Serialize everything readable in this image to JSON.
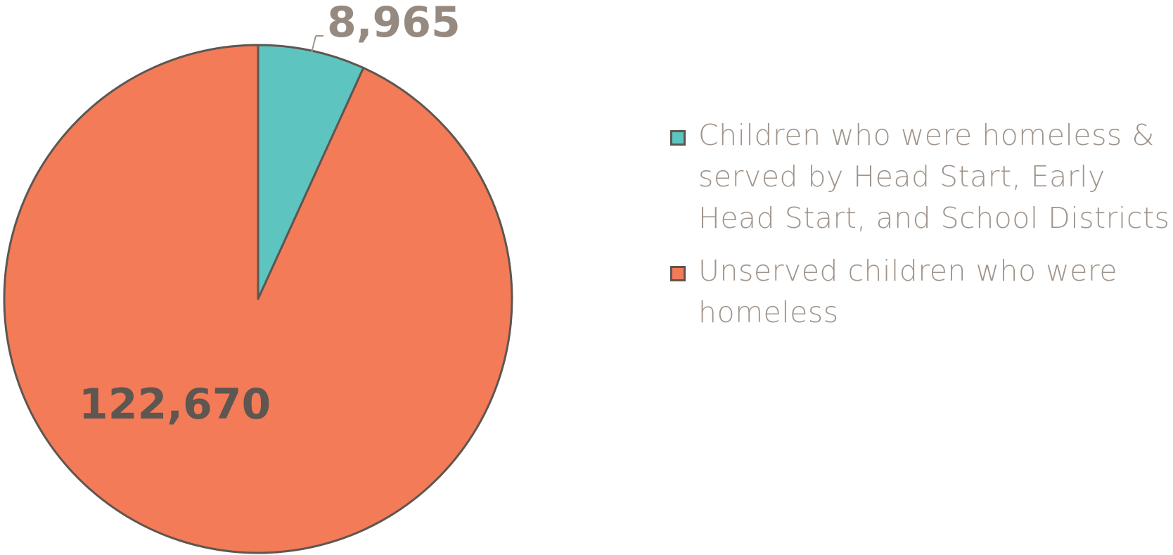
{
  "chart_data": {
    "type": "pie",
    "title": "",
    "slices": [
      {
        "label": "Children who were homeless & served by Head Start, Early Head Start, and School Districts",
        "value": 8965,
        "display_value": "8,965",
        "color": "#5ec4bf"
      },
      {
        "label": "Unserved children who were homeless",
        "value": 122670,
        "display_value": "122,670",
        "color": "#f47b58"
      }
    ],
    "start_angle": "12 o'clock",
    "direction": "clockwise",
    "legend_position": "right",
    "slice_outline_color": "#5e5650",
    "label_colors": {
      "small_slice": "#968a80",
      "large_slice": "#5e5650"
    }
  }
}
